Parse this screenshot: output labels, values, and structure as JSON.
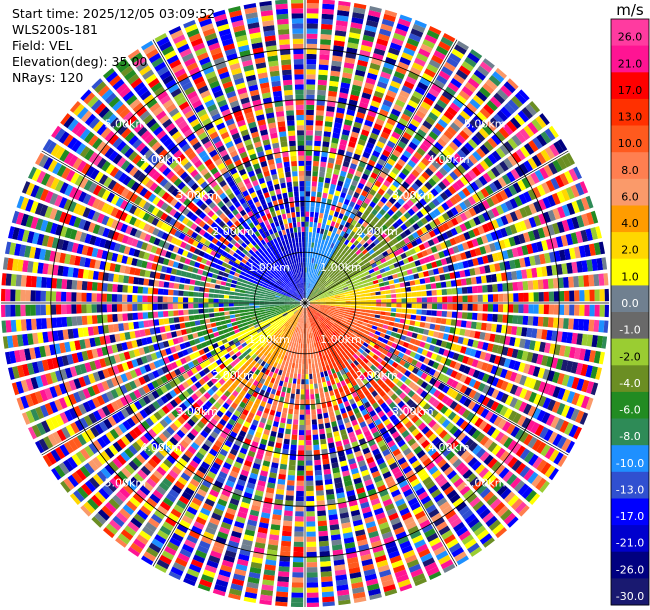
{
  "header": {
    "start_time": "Start time: 2025/12/05 03:09:52",
    "instrument": "WLS200s-181",
    "field": "Field: VEL",
    "elevation": "Elevation(deg): 35.00",
    "nrays": "NRays: 120"
  },
  "chart_data": {
    "type": "heatmap",
    "projection": "polar PPI",
    "n_rays": 120,
    "range_rings_km": [
      1.0,
      2.0,
      3.0,
      4.0,
      5.0
    ],
    "range_ring_labels": [
      "1.00km",
      "2.00km",
      "3.00km",
      "4.00km",
      "5.00km"
    ],
    "max_range_km": 5.98,
    "colorbar": {
      "unit": "m/s",
      "tick_labels": [
        "26.0",
        "21.0",
        "17.0",
        "13.0",
        "10.0",
        "8.0",
        "6.0",
        "4.0",
        "2.0",
        "1.0",
        "0.0",
        "-1.0",
        "-2.0",
        "-4.0",
        "-6.0",
        "-8.0",
        "-10.0",
        "-13.0",
        "-17.0",
        "-21.0",
        "-26.0",
        "-30.0"
      ],
      "colors": [
        "#ff3ba0",
        "#ff1493",
        "#ff0000",
        "#ff3000",
        "#ff5a1e",
        "#ff7f50",
        "#fa9a6a",
        "#ff9c00",
        "#ffd700",
        "#ffff00",
        "#708090",
        "#696969",
        "#9acd32",
        "#6b8e23",
        "#228b22",
        "#2e8b57",
        "#1e90ff",
        "#3050d0",
        "#0000ff",
        "#0000cd",
        "#000080",
        "#191970"
      ]
    },
    "ray_pattern": "near-field coherent velocities (positive toward east/south-east, negative toward north-west), noisy beyond ~1.5 km"
  }
}
